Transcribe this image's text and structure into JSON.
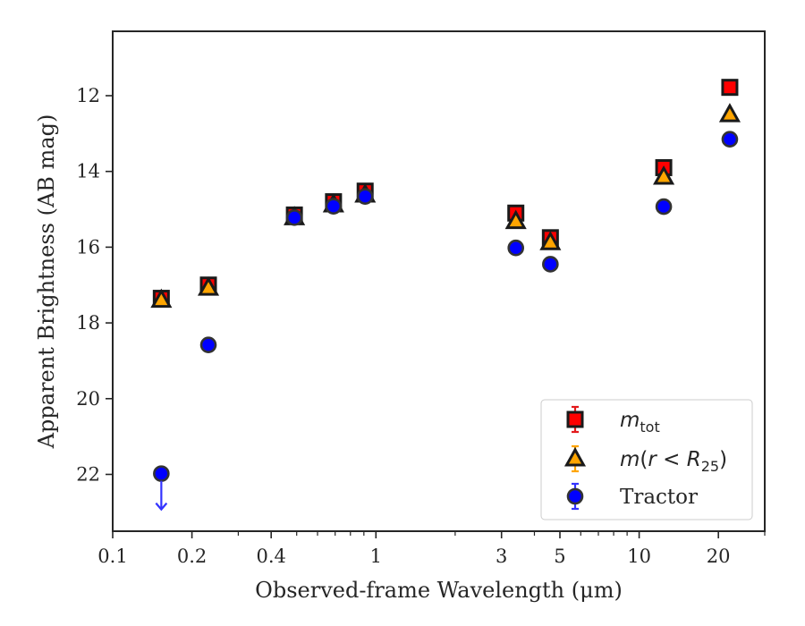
{
  "chart_data": {
    "type": "scatter",
    "title": "",
    "xlabel": "Observed-frame Wavelength (μm)",
    "ylabel": "Apparent Brightness (AB mag)",
    "xscale": "log",
    "xlim": [
      0.1,
      30
    ],
    "ylim": [
      23.5,
      10.3
    ],
    "y_inverted": true,
    "grid": false,
    "legend_position": "lower right",
    "xticks": [
      {
        "value": 0.1,
        "label": "0.1"
      },
      {
        "value": 0.2,
        "label": "0.2"
      },
      {
        "value": 0.4,
        "label": "0.4"
      },
      {
        "value": 1,
        "label": "1"
      },
      {
        "value": 3,
        "label": "3"
      },
      {
        "value": 5,
        "label": "5"
      },
      {
        "value": 10,
        "label": "10"
      },
      {
        "value": 20,
        "label": "20"
      }
    ],
    "yticks": [
      {
        "value": 12,
        "label": "12"
      },
      {
        "value": 14,
        "label": "14"
      },
      {
        "value": 16,
        "label": "16"
      },
      {
        "value": 18,
        "label": "18"
      },
      {
        "value": 20,
        "label": "20"
      },
      {
        "value": 22,
        "label": "22"
      }
    ],
    "series": [
      {
        "legend_label": "m_tot",
        "marker": "square",
        "color": "#ff0000",
        "edge_color": "#1a1a1a",
        "errorbar_color": "#e31a1c",
        "points": [
          {
            "x": 0.153,
            "y": 17.35
          },
          {
            "x": 0.231,
            "y": 17.0
          },
          {
            "x": 0.49,
            "y": 15.15
          },
          {
            "x": 0.69,
            "y": 14.8
          },
          {
            "x": 0.91,
            "y": 14.52
          },
          {
            "x": 3.4,
            "y": 15.1
          },
          {
            "x": 4.6,
            "y": 15.75
          },
          {
            "x": 12.4,
            "y": 13.9
          },
          {
            "x": 22.1,
            "y": 11.78
          }
        ]
      },
      {
        "legend_label": "m(r < R25)",
        "marker": "triangle",
        "color": "#ffa500",
        "edge_color": "#1a1a1a",
        "errorbar_color": "#ffa500",
        "points": [
          {
            "x": 0.153,
            "y": 17.4
          },
          {
            "x": 0.231,
            "y": 17.08
          },
          {
            "x": 0.49,
            "y": 15.22
          },
          {
            "x": 0.69,
            "y": 14.88
          },
          {
            "x": 0.91,
            "y": 14.62
          },
          {
            "x": 3.4,
            "y": 15.32
          },
          {
            "x": 4.6,
            "y": 15.88
          },
          {
            "x": 12.4,
            "y": 14.15
          },
          {
            "x": 22.1,
            "y": 12.5
          }
        ]
      },
      {
        "legend_label": "Tractor",
        "marker": "circle",
        "color": "#0000ff",
        "edge_color": "#333333",
        "errorbar_color": "#3333ff",
        "points": [
          {
            "x": 0.153,
            "y": 21.98,
            "upper_limit": true
          },
          {
            "x": 0.231,
            "y": 18.58
          },
          {
            "x": 0.49,
            "y": 15.22
          },
          {
            "x": 0.69,
            "y": 14.92
          },
          {
            "x": 0.91,
            "y": 14.66
          },
          {
            "x": 3.4,
            "y": 16.02
          },
          {
            "x": 4.6,
            "y": 16.45
          },
          {
            "x": 12.4,
            "y": 14.93
          },
          {
            "x": 22.1,
            "y": 13.15
          }
        ]
      }
    ]
  },
  "legend": {
    "tractor_label": "Tractor"
  }
}
